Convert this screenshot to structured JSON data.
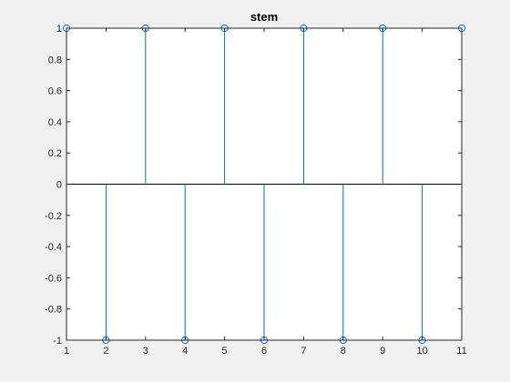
{
  "chart_data": {
    "type": "stem",
    "title": "stem",
    "xlabel": "",
    "ylabel": "",
    "x": [
      1,
      2,
      3,
      4,
      5,
      6,
      7,
      8,
      9,
      10,
      11
    ],
    "y": [
      1,
      -1,
      1,
      -1,
      1,
      -1,
      1,
      -1,
      1,
      -1,
      1
    ],
    "xlim": [
      1,
      11
    ],
    "ylim": [
      -1,
      1
    ],
    "xticks": [
      1,
      2,
      3,
      4,
      5,
      6,
      7,
      8,
      9,
      10,
      11
    ],
    "yticks": [
      -1,
      -0.8,
      -0.6,
      -0.4,
      -0.2,
      0,
      0.2,
      0.4,
      0.6,
      0.8,
      1
    ],
    "ytick_labels": [
      "-1",
      "-0.8",
      "-0.6",
      "-0.4",
      "-0.2",
      "0",
      "0.2",
      "0.4",
      "0.6",
      "0.8",
      "1"
    ],
    "baseline": 0,
    "marker": "circle-open",
    "grid": false,
    "colors": {
      "stem": "#0072BD",
      "axes": "#262626",
      "background": "#ffffff",
      "figure": "#f0f0f0"
    }
  }
}
